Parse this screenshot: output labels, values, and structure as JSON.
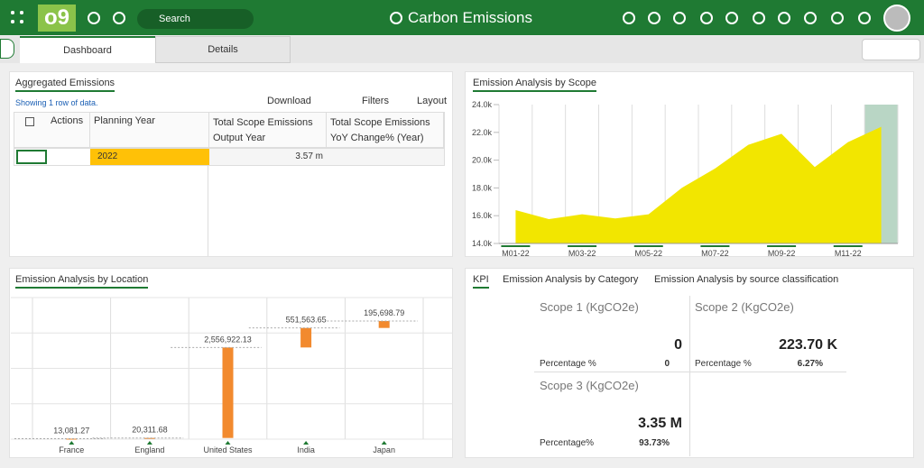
{
  "header": {
    "title": "Carbon Emissions",
    "search": "Search"
  },
  "tabs": [
    "Dashboard",
    "Details"
  ],
  "aggregated": {
    "title": "Aggregated Emissions",
    "info": "Showing 1 row of data.",
    "toolbar": [
      "Download",
      "Filters",
      "Layout"
    ],
    "columns": [
      "Actions",
      "Planning Year",
      [
        "Total Scope Emissions",
        "Output Year"
      ],
      [
        "Total Scope Emissions",
        "YoY Change% (Year)"
      ]
    ],
    "row": [
      "2022",
      "3.57 m"
    ]
  },
  "chart_data": [
    {
      "type": "area",
      "title": "Emission Analysis by Scope",
      "color": "#f2e600",
      "highlight_color": "#b9d6c5",
      "categories": [
        "M01-22",
        null,
        "M03-22",
        null,
        "M05-22",
        null,
        "M07-22",
        null,
        "M09-22",
        null,
        "M11-22",
        null
      ],
      "values": [
        16400,
        15750,
        16100,
        15800,
        16100,
        18000,
        19400,
        21100,
        21900,
        19500,
        21300,
        22400
      ],
      "ylim": [
        14000,
        24000
      ],
      "yticks": [
        {
          "value": 14000,
          "label": "14.0k"
        },
        {
          "value": 16000,
          "label": "16.0k"
        },
        {
          "value": 18000,
          "label": "18.0k"
        },
        {
          "value": 20000,
          "label": "20.0k"
        },
        {
          "value": 22000,
          "label": "22.0k"
        },
        {
          "value": 24000,
          "label": "24.0k"
        }
      ]
    },
    {
      "type": "waterfall",
      "title": "Emission Analysis by Location",
      "color": "#f28a2e",
      "categories": [
        "France",
        "England",
        "United States",
        "India",
        "Japan"
      ],
      "values": [
        13081.27,
        20311.68,
        2556922.13,
        551563.65,
        195698.79
      ],
      "value_labels": [
        "13,081.27",
        "20,311.68",
        "2,556,922.13",
        "551,563.65",
        "195,698.79"
      ],
      "ylim": [
        0,
        4000000
      ]
    }
  ],
  "kpi": {
    "tabs": [
      "KPI",
      "Emission Analysis by Category",
      "Emission Analysis by source classification"
    ],
    "cards": [
      {
        "title": "Scope 1 (KgCO2e)",
        "value": "0",
        "pct_label": "Percentage %",
        "pct": "0"
      },
      {
        "title": "Scope 2 (KgCO2e)",
        "value": "223.70 K",
        "pct_label": "Percentage %",
        "pct": "6.27%"
      },
      {
        "title": "Scope 3 (KgCO2e)",
        "value": "3.35 M",
        "pct_label": "Percentage%",
        "pct": "93.73%"
      }
    ]
  }
}
